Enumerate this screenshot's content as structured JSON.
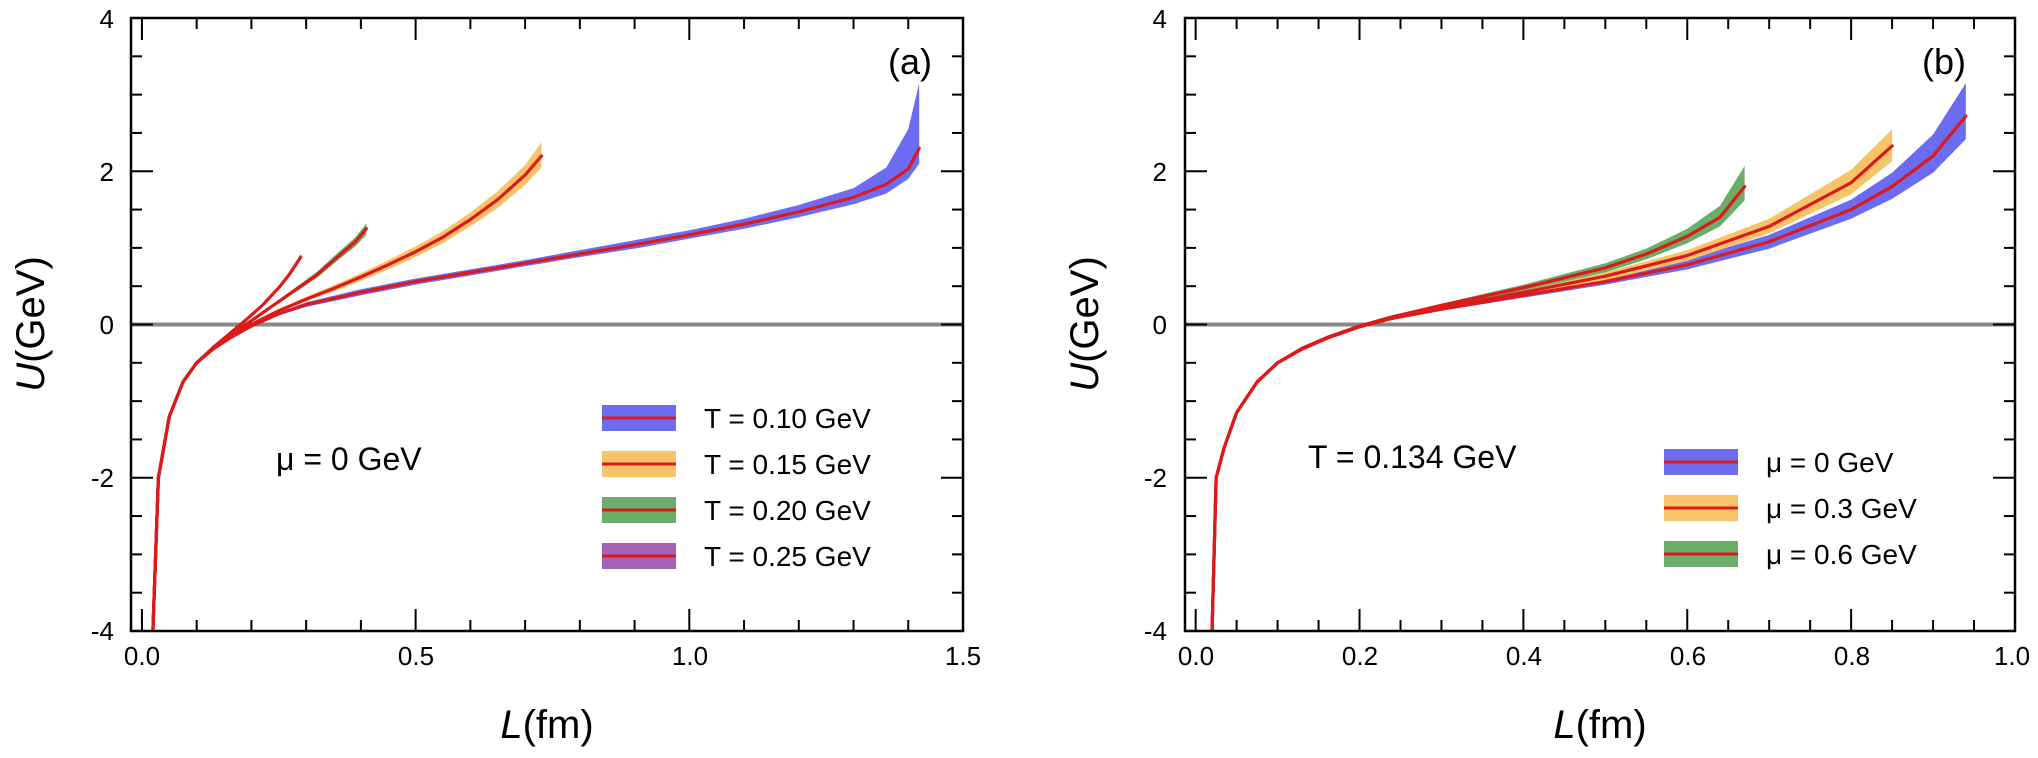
{
  "colors": {
    "blue_band": "#6c6cf2",
    "orange_band": "#f7c46a",
    "green_band": "#6aae6a",
    "purple_band": "#a561b5",
    "curve": "#dd1a1a",
    "zero_line": "#888888",
    "axis": "#000000"
  },
  "chart_data": [
    {
      "type": "line",
      "panel_label": "(a)",
      "annotation": "μ = 0 GeV",
      "xlabel": "L",
      "xlabel_unit": "(fm)",
      "ylabel": "U",
      "ylabel_unit": "(GeV)",
      "xlim": [
        -0.02,
        1.5
      ],
      "ylim": [
        -4,
        4
      ],
      "xticks": [
        0.0,
        0.5,
        1.0,
        1.5
      ],
      "xtick_labels": [
        "0.0",
        "0.5",
        "1.0",
        "1.5"
      ],
      "yticks": [
        -4,
        -2,
        0,
        2,
        4
      ],
      "ytick_labels": [
        "-4",
        "-2",
        "0",
        "2",
        "4"
      ],
      "zero_line": true,
      "legend_position": "lower-right",
      "series": [
        {
          "name": "T = 0.10 GeV",
          "band_color": "blue_band",
          "x": [
            0.02,
            0.03,
            0.05,
            0.075,
            0.1,
            0.13,
            0.16,
            0.2,
            0.25,
            0.3,
            0.4,
            0.5,
            0.6,
            0.7,
            0.8,
            0.9,
            1.0,
            1.1,
            1.2,
            1.3,
            1.36,
            1.4,
            1.42
          ],
          "y": [
            -4.0,
            -2.0,
            -1.2,
            -0.75,
            -0.5,
            -0.32,
            -0.18,
            -0.02,
            0.14,
            0.26,
            0.42,
            0.56,
            0.68,
            0.8,
            0.92,
            1.04,
            1.17,
            1.31,
            1.47,
            1.66,
            1.83,
            2.03,
            2.3
          ],
          "upper": [
            -4.0,
            -2.0,
            -1.2,
            -0.75,
            -0.5,
            -0.31,
            -0.17,
            -0.01,
            0.16,
            0.29,
            0.46,
            0.6,
            0.72,
            0.84,
            0.97,
            1.1,
            1.23,
            1.38,
            1.56,
            1.78,
            2.05,
            2.55,
            3.15
          ],
          "lower": [
            -4.0,
            -2.0,
            -1.2,
            -0.75,
            -0.5,
            -0.33,
            -0.19,
            -0.03,
            0.12,
            0.23,
            0.38,
            0.52,
            0.64,
            0.76,
            0.88,
            0.99,
            1.12,
            1.25,
            1.4,
            1.57,
            1.71,
            1.9,
            2.1
          ]
        },
        {
          "name": "T = 0.15 GeV",
          "band_color": "orange_band",
          "x": [
            0.02,
            0.03,
            0.05,
            0.075,
            0.1,
            0.13,
            0.16,
            0.2,
            0.25,
            0.3,
            0.35,
            0.4,
            0.45,
            0.5,
            0.55,
            0.6,
            0.65,
            0.7,
            0.73
          ],
          "y": [
            -4.0,
            -2.0,
            -1.2,
            -0.75,
            -0.5,
            -0.32,
            -0.17,
            0.0,
            0.18,
            0.33,
            0.47,
            0.62,
            0.78,
            0.95,
            1.14,
            1.37,
            1.63,
            1.95,
            2.2
          ],
          "upper": [
            -4.0,
            -2.0,
            -1.2,
            -0.75,
            -0.5,
            -0.31,
            -0.16,
            0.02,
            0.2,
            0.36,
            0.51,
            0.67,
            0.84,
            1.02,
            1.22,
            1.46,
            1.74,
            2.08,
            2.38
          ],
          "lower": [
            -4.0,
            -2.0,
            -1.2,
            -0.75,
            -0.5,
            -0.33,
            -0.18,
            -0.02,
            0.16,
            0.3,
            0.43,
            0.57,
            0.72,
            0.88,
            1.06,
            1.28,
            1.52,
            1.82,
            2.05
          ]
        },
        {
          "name": "T = 0.20 GeV",
          "band_color": "green_band",
          "x": [
            0.02,
            0.03,
            0.05,
            0.075,
            0.1,
            0.13,
            0.16,
            0.2,
            0.24,
            0.28,
            0.32,
            0.36,
            0.39,
            0.41
          ],
          "y": [
            -4.0,
            -2.0,
            -1.2,
            -0.75,
            -0.5,
            -0.31,
            -0.15,
            0.05,
            0.25,
            0.45,
            0.65,
            0.9,
            1.08,
            1.25
          ],
          "upper": [
            -4.0,
            -2.0,
            -1.2,
            -0.75,
            -0.5,
            -0.3,
            -0.14,
            0.07,
            0.27,
            0.48,
            0.69,
            0.95,
            1.14,
            1.32
          ],
          "lower": [
            -4.0,
            -2.0,
            -1.2,
            -0.75,
            -0.5,
            -0.32,
            -0.16,
            0.03,
            0.23,
            0.42,
            0.61,
            0.85,
            1.02,
            1.17
          ]
        },
        {
          "name": "T = 0.25 GeV",
          "band_color": "purple_band",
          "x": [
            0.02,
            0.03,
            0.05,
            0.075,
            0.1,
            0.13,
            0.16,
            0.19,
            0.22,
            0.25,
            0.27,
            0.29
          ],
          "y": [
            -4.0,
            -2.0,
            -1.2,
            -0.75,
            -0.5,
            -0.3,
            -0.12,
            0.06,
            0.25,
            0.48,
            0.66,
            0.88
          ],
          "upper": [
            -4.0,
            -2.0,
            -1.2,
            -0.75,
            -0.5,
            -0.29,
            -0.11,
            0.07,
            0.27,
            0.5,
            0.69,
            0.92
          ],
          "lower": [
            -4.0,
            -2.0,
            -1.2,
            -0.75,
            -0.5,
            -0.31,
            -0.13,
            0.05,
            0.23,
            0.46,
            0.63,
            0.84
          ]
        }
      ]
    },
    {
      "type": "line",
      "panel_label": "(b)",
      "annotation": "T = 0.134 GeV",
      "xlabel": "L",
      "xlabel_unit": "(fm)",
      "ylabel": "U",
      "ylabel_unit": "(GeV)",
      "xlim": [
        -0.013,
        1.0
      ],
      "ylim": [
        -4,
        4
      ],
      "xticks": [
        0.0,
        0.2,
        0.4,
        0.6,
        0.8,
        1.0
      ],
      "xtick_labels": [
        "0.0",
        "0.2",
        "0.4",
        "0.6",
        "0.8",
        "1.0"
      ],
      "yticks": [
        -4,
        -2,
        0,
        2,
        4
      ],
      "ytick_labels": [
        "-4",
        "-2",
        "0",
        "2",
        "4"
      ],
      "zero_line": true,
      "legend_position": "lower-right",
      "series": [
        {
          "name": "μ = 0 GeV",
          "band_color": "blue_band",
          "x": [
            0.02,
            0.025,
            0.035,
            0.05,
            0.075,
            0.1,
            0.13,
            0.16,
            0.2,
            0.24,
            0.3,
            0.4,
            0.5,
            0.6,
            0.7,
            0.8,
            0.85,
            0.9,
            0.94
          ],
          "y": [
            -4.0,
            -2.0,
            -1.6,
            -1.15,
            -0.75,
            -0.5,
            -0.32,
            -0.18,
            -0.03,
            0.08,
            0.2,
            0.38,
            0.56,
            0.78,
            1.08,
            1.5,
            1.8,
            2.2,
            2.72
          ],
          "upper": [
            -4.0,
            -2.0,
            -1.6,
            -1.15,
            -0.75,
            -0.5,
            -0.31,
            -0.17,
            -0.02,
            0.09,
            0.22,
            0.41,
            0.61,
            0.85,
            1.17,
            1.63,
            1.98,
            2.48,
            3.15
          ],
          "lower": [
            -4.0,
            -2.0,
            -1.6,
            -1.15,
            -0.75,
            -0.5,
            -0.33,
            -0.19,
            -0.04,
            0.07,
            0.18,
            0.35,
            0.52,
            0.72,
            0.99,
            1.38,
            1.64,
            1.98,
            2.42
          ]
        },
        {
          "name": "μ = 0.3 GeV",
          "band_color": "orange_band",
          "x": [
            0.02,
            0.025,
            0.035,
            0.05,
            0.075,
            0.1,
            0.13,
            0.16,
            0.2,
            0.24,
            0.3,
            0.4,
            0.5,
            0.6,
            0.7,
            0.8,
            0.85
          ],
          "y": [
            -4.0,
            -2.0,
            -1.6,
            -1.15,
            -0.75,
            -0.5,
            -0.32,
            -0.18,
            -0.03,
            0.09,
            0.22,
            0.42,
            0.63,
            0.9,
            1.28,
            1.85,
            2.33
          ],
          "upper": [
            -4.0,
            -2.0,
            -1.6,
            -1.15,
            -0.75,
            -0.5,
            -0.31,
            -0.17,
            -0.02,
            0.1,
            0.24,
            0.45,
            0.68,
            0.97,
            1.38,
            2.02,
            2.55
          ],
          "lower": [
            -4.0,
            -2.0,
            -1.6,
            -1.15,
            -0.75,
            -0.5,
            -0.33,
            -0.19,
            -0.04,
            0.08,
            0.2,
            0.39,
            0.58,
            0.83,
            1.19,
            1.7,
            2.13
          ]
        },
        {
          "name": "μ = 0.6 GeV",
          "band_color": "green_band",
          "x": [
            0.02,
            0.025,
            0.035,
            0.05,
            0.075,
            0.1,
            0.13,
            0.16,
            0.2,
            0.24,
            0.3,
            0.4,
            0.5,
            0.55,
            0.6,
            0.64,
            0.67
          ],
          "y": [
            -4.0,
            -2.0,
            -1.6,
            -1.15,
            -0.75,
            -0.5,
            -0.31,
            -0.17,
            -0.02,
            0.1,
            0.25,
            0.48,
            0.74,
            0.92,
            1.15,
            1.4,
            1.8
          ],
          "upper": [
            -4.0,
            -2.0,
            -1.6,
            -1.15,
            -0.75,
            -0.5,
            -0.3,
            -0.16,
            -0.01,
            0.11,
            0.27,
            0.52,
            0.8,
            0.99,
            1.25,
            1.55,
            2.07
          ],
          "lower": [
            -4.0,
            -2.0,
            -1.6,
            -1.15,
            -0.75,
            -0.5,
            -0.32,
            -0.18,
            -0.03,
            0.09,
            0.23,
            0.44,
            0.68,
            0.85,
            1.06,
            1.28,
            1.62
          ]
        }
      ]
    }
  ]
}
